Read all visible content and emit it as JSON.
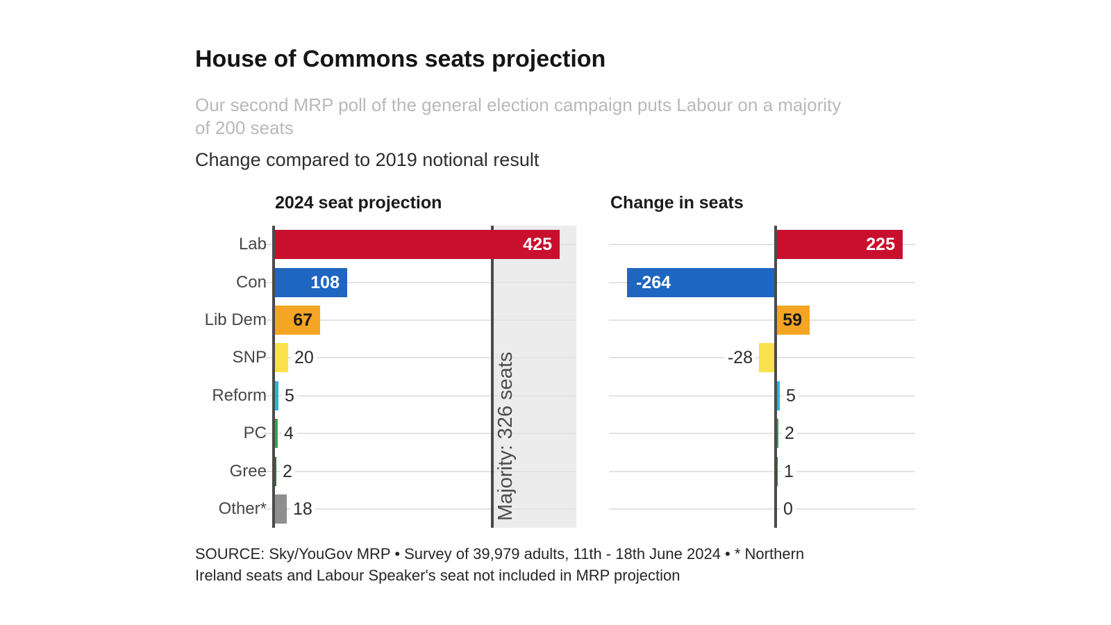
{
  "header": {
    "title": "House of Commons seats projection",
    "subtitle_line1": "Our second MRP poll of the general election campaign puts Labour on a majority",
    "subtitle_line2": "of 200 seats",
    "note": "Change compared to 2019 notional result"
  },
  "source": {
    "line1": "SOURCE: Sky/YouGov MRP • Survey of 39,979 adults, 11th - 18th June 2024 • * Northern",
    "line2": "Ireland seats and Labour Speaker's seat not included in MRP projection"
  },
  "colors": {
    "grid": "#e3e3e3",
    "axis": "#4a4a4a",
    "majority_line": "#4a4a4a",
    "majority_band": "#ececec",
    "majority_label_text": "#4c4c4c",
    "background": "#ffffff"
  },
  "chart_data": [
    {
      "type": "bar",
      "orientation": "horizontal",
      "title": "2024 seat projection",
      "categories": [
        "Lab",
        "Con",
        "Lib Dem",
        "SNP",
        "Reform",
        "PC",
        "Gree",
        "Other*"
      ],
      "values": [
        425,
        108,
        67,
        20,
        5,
        4,
        2,
        18
      ],
      "value_labels": [
        "425",
        "108",
        "67",
        "20",
        "5",
        "4",
        "2",
        "18"
      ],
      "bar_colors": [
        "#c8102e",
        "#1f66c0",
        "#f3a523",
        "#f8e14b",
        "#27b5d8",
        "#33a457",
        "#1f7a38",
        "#8f8f8f"
      ],
      "label_inside": [
        true,
        true,
        true,
        false,
        false,
        false,
        false,
        false
      ],
      "label_text_colors": [
        "#ffffff",
        "#ffffff",
        "#1a1a1a",
        "#2b2b2b",
        "#2b2b2b",
        "#2b2b2b",
        "#2b2b2b",
        "#2b2b2b"
      ],
      "xlim": [
        0,
        450
      ],
      "grid": true,
      "annotation": {
        "label": "Majority: 326 seats",
        "x": 326
      }
    },
    {
      "type": "bar",
      "orientation": "horizontal",
      "title": "Change in seats",
      "categories": [
        "Lab",
        "Con",
        "Lib Dem",
        "SNP",
        "Reform",
        "PC",
        "Gree",
        "Other*"
      ],
      "values": [
        225,
        -264,
        59,
        -28,
        5,
        2,
        1,
        0
      ],
      "value_labels": [
        "225",
        "-264",
        "59",
        "-28",
        "5",
        "2",
        "1",
        "0"
      ],
      "bar_colors": [
        "#c8102e",
        "#1f66c0",
        "#f3a523",
        "#f8e14b",
        "#27b5d8",
        "#33a457",
        "#1f7a38",
        "#8f8f8f"
      ],
      "label_inside": [
        true,
        true,
        true,
        false,
        false,
        false,
        false,
        false
      ],
      "label_text_colors": [
        "#ffffff",
        "#ffffff",
        "#1a1a1a",
        "#2b2b2b",
        "#2b2b2b",
        "#2b2b2b",
        "#2b2b2b",
        "#2b2b2b"
      ],
      "xlim": [
        -300,
        250
      ],
      "grid": true
    }
  ]
}
